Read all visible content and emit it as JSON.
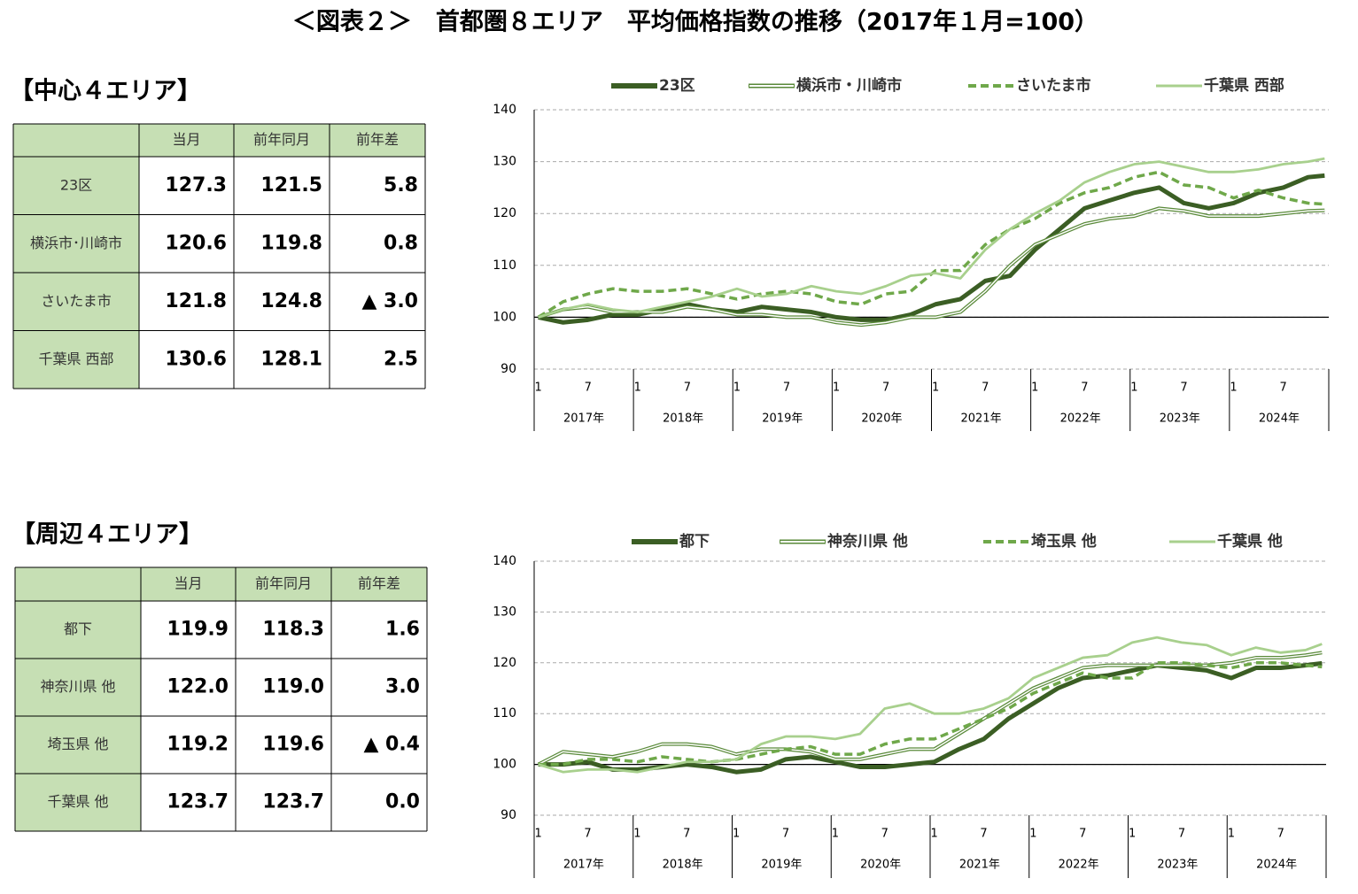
{
  "title": "＜図表２＞　首都圏８エリア　平均価格指数の推移（2017年１月=100）",
  "tables": [
    {
      "title": "【中心４エリア】",
      "header": [
        "当月",
        "前年同月",
        "前年差"
      ],
      "rows": [
        [
          "23区",
          "127.3",
          "121.5",
          "5.8"
        ],
        [
          "横浜市･川崎市",
          "120.6",
          "119.8",
          "0.8"
        ],
        [
          "さいたま市",
          "121.8",
          "124.8",
          "▲ 3.0"
        ],
        [
          "千葉県 西部",
          "130.6",
          "128.1",
          "2.5"
        ]
      ]
    },
    {
      "title": "【周辺４エリア】",
      "header": [
        "当月",
        "前年同月",
        "前年差"
      ],
      "rows": [
        [
          "都下",
          "119.9",
          "118.3",
          "1.6"
        ],
        [
          "神奈川県 他",
          "122.0",
          "119.0",
          "3.0"
        ],
        [
          "埼玉県 他",
          "119.2",
          "119.6",
          "▲ 0.4"
        ],
        [
          "千葉県 他",
          "123.7",
          "123.7",
          "0.0"
        ]
      ]
    }
  ],
  "chart_data": [
    {
      "type": "line",
      "x": [
        "2017-01",
        "2017-04",
        "2017-07",
        "2017-10",
        "2018-01",
        "2018-04",
        "2018-07",
        "2018-10",
        "2019-01",
        "2019-04",
        "2019-07",
        "2019-10",
        "2020-01",
        "2020-04",
        "2020-07",
        "2020-10",
        "2021-01",
        "2021-04",
        "2021-07",
        "2021-10",
        "2022-01",
        "2022-04",
        "2022-07",
        "2022-10",
        "2023-01",
        "2023-04",
        "2023-07",
        "2023-10",
        "2024-01",
        "2024-04",
        "2024-07",
        "2024-10",
        "2024-12"
      ],
      "xlim": [
        "2017-01",
        "2024-12"
      ],
      "month_ticks": [
        "1",
        "7"
      ],
      "years": [
        "2017年",
        "2018年",
        "2019年",
        "2020年",
        "2021年",
        "2022年",
        "2023年",
        "2024年"
      ],
      "ylim": [
        90,
        140
      ],
      "yticks": [
        90,
        100,
        110,
        120,
        130,
        140
      ],
      "grid": true,
      "reference_line": 100,
      "series": [
        {
          "name": "23区",
          "color": "#3b5e24",
          "style": "thick",
          "values": [
            100,
            99,
            99.5,
            100.5,
            100.5,
            101.5,
            102.5,
            101.5,
            101,
            102,
            101.5,
            101,
            100,
            99.5,
            99.5,
            100.5,
            102.5,
            103.5,
            107,
            108,
            113,
            117,
            121,
            122.5,
            124,
            125,
            122,
            121,
            122,
            124,
            125,
            127,
            127.3
          ]
        },
        {
          "name": "横浜市・川崎市",
          "color": "#5a8a3a",
          "style": "double",
          "values": [
            100,
            101.5,
            102,
            101,
            101,
            101,
            102,
            101.5,
            100.5,
            100.5,
            100,
            100,
            99,
            98.5,
            99,
            100,
            100,
            101,
            105,
            110,
            114,
            116,
            118,
            119,
            119.5,
            121,
            120.5,
            119.5,
            119.5,
            119.5,
            120,
            120.5,
            120.6
          ]
        },
        {
          "name": "さいたま市",
          "color": "#6fa84a",
          "style": "dashed",
          "values": [
            100,
            103,
            104.5,
            105.5,
            105,
            105,
            105.5,
            104.5,
            103.5,
            104.5,
            105,
            104.5,
            103,
            102.5,
            104.5,
            105,
            109,
            109,
            114,
            117,
            119,
            122,
            124,
            125,
            127,
            128,
            125.5,
            125,
            123,
            124.5,
            123,
            122,
            121.8
          ]
        },
        {
          "name": "千葉県 西部",
          "color": "#a8d08d",
          "style": "solid",
          "values": [
            100,
            101.5,
            102.5,
            101.5,
            101,
            102,
            103,
            104,
            105.5,
            104,
            104.5,
            106,
            105,
            104.5,
            106,
            108,
            108.5,
            107.5,
            113,
            117,
            120,
            122.5,
            126,
            128,
            129.5,
            130,
            129,
            128,
            128,
            128.5,
            129.5,
            130,
            130.6
          ]
        }
      ]
    },
    {
      "type": "line",
      "x": [
        "2017-01",
        "2017-04",
        "2017-07",
        "2017-10",
        "2018-01",
        "2018-04",
        "2018-07",
        "2018-10",
        "2019-01",
        "2019-04",
        "2019-07",
        "2019-10",
        "2020-01",
        "2020-04",
        "2020-07",
        "2020-10",
        "2021-01",
        "2021-04",
        "2021-07",
        "2021-10",
        "2022-01",
        "2022-04",
        "2022-07",
        "2022-10",
        "2023-01",
        "2023-04",
        "2023-07",
        "2023-10",
        "2024-01",
        "2024-04",
        "2024-07",
        "2024-10",
        "2024-12"
      ],
      "xlim": [
        "2017-01",
        "2024-12"
      ],
      "month_ticks": [
        "1",
        "7"
      ],
      "years": [
        "2017年",
        "2018年",
        "2019年",
        "2020年",
        "2021年",
        "2022年",
        "2023年",
        "2024年"
      ],
      "ylim": [
        90,
        140
      ],
      "yticks": [
        90,
        100,
        110,
        120,
        130,
        140
      ],
      "grid": true,
      "reference_line": 100,
      "series": [
        {
          "name": "都下",
          "color": "#3b5e24",
          "style": "thick",
          "values": [
            100,
            100,
            100.5,
            99,
            99,
            99.5,
            100,
            99.5,
            98.5,
            99,
            101,
            101.5,
            100.5,
            99.5,
            99.5,
            100,
            100.5,
            103,
            105,
            109,
            112,
            115,
            117,
            117.5,
            118.5,
            119.5,
            119,
            118.5,
            117,
            119,
            119,
            119.5,
            119.9
          ]
        },
        {
          "name": "神奈川県 他",
          "color": "#5a8a3a",
          "style": "double",
          "values": [
            100,
            102.5,
            102,
            101.5,
            102.5,
            104,
            104,
            103.5,
            102,
            103,
            103,
            102.5,
            101,
            101,
            102,
            103,
            103,
            106,
            109,
            112,
            115,
            117,
            119,
            119.5,
            119.5,
            119.5,
            119.5,
            119.5,
            120,
            121,
            121,
            121.5,
            122.0
          ]
        },
        {
          "name": "埼玉県 他",
          "color": "#6fa84a",
          "style": "dashed",
          "values": [
            100,
            100,
            101,
            101,
            100.5,
            101.5,
            101,
            100.5,
            101,
            102,
            103,
            103.5,
            102,
            102,
            104,
            105,
            105,
            107,
            109,
            111,
            114,
            116,
            118,
            117,
            117,
            120,
            120,
            119.5,
            119,
            120,
            120,
            119.5,
            119.2
          ]
        },
        {
          "name": "千葉県 他",
          "color": "#a8d08d",
          "style": "solid",
          "values": [
            100,
            98.5,
            99,
            99,
            98.5,
            99.5,
            100.5,
            100.5,
            101,
            104,
            105.5,
            105.5,
            105,
            106,
            111,
            112,
            110,
            110,
            111,
            113,
            117,
            119,
            121,
            121.5,
            124,
            125,
            124,
            123.5,
            121.5,
            123,
            122,
            122.5,
            123.7
          ]
        }
      ]
    }
  ]
}
